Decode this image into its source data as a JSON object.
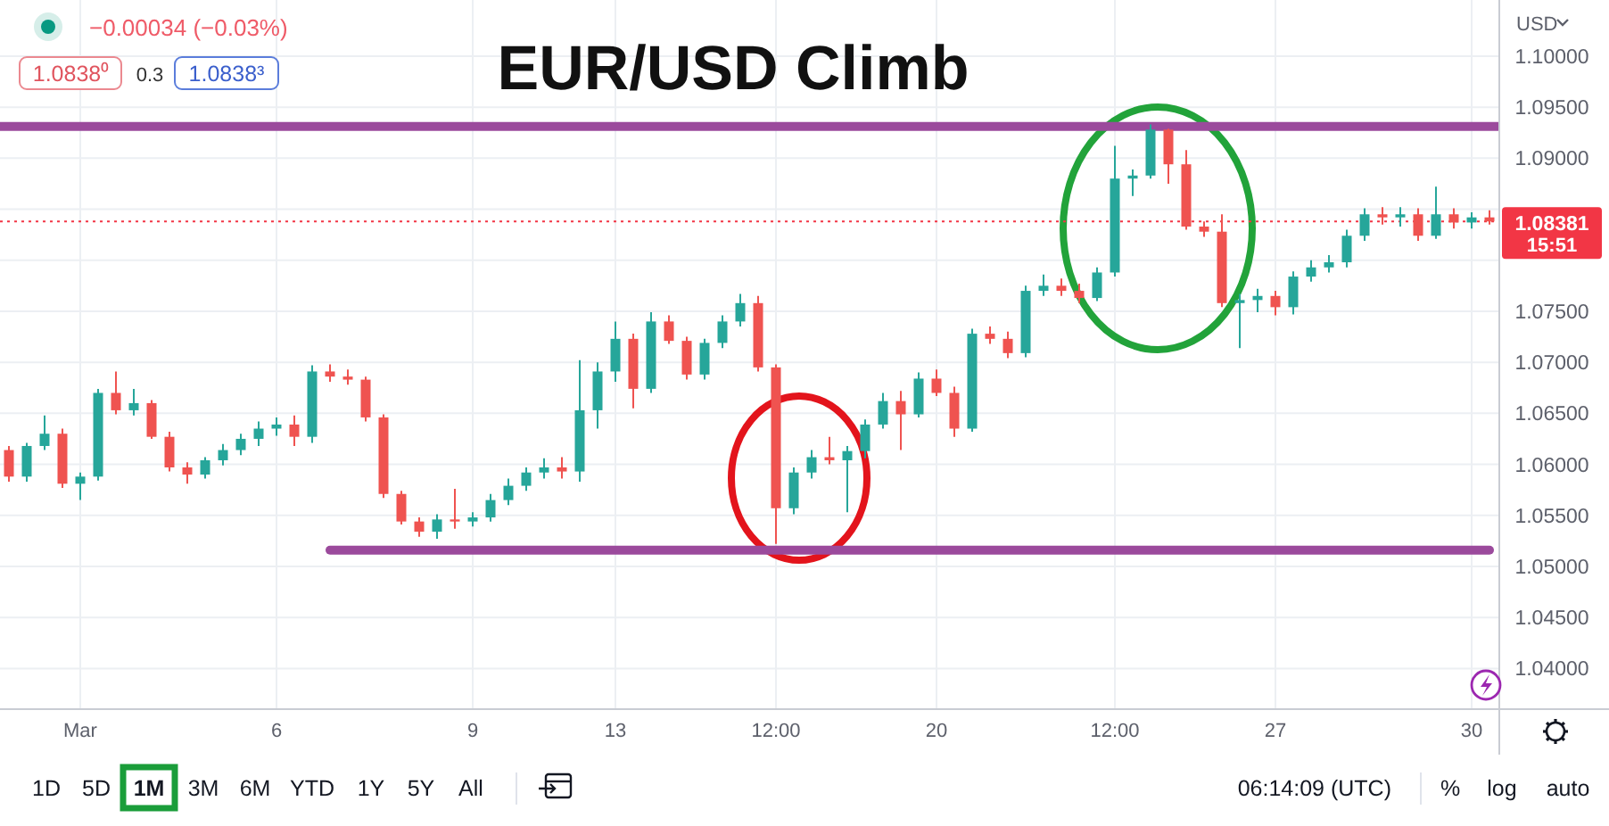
{
  "chart_data": {
    "type": "candlestick",
    "title": "EUR/USD Climb",
    "ylabel": "USD",
    "categories": [
      null,
      null,
      null,
      null,
      "Mar",
      null,
      null,
      null,
      null,
      null,
      null,
      null,
      null,
      null,
      null,
      "6",
      null,
      null,
      null,
      null,
      null,
      null,
      null,
      null,
      null,
      null,
      "9",
      null,
      null,
      null,
      null,
      null,
      null,
      null,
      "13",
      null,
      null,
      null,
      null,
      null,
      null,
      null,
      null,
      "12:00",
      null,
      null,
      null,
      null,
      null,
      null,
      null,
      null,
      "20",
      null,
      null,
      null,
      null,
      null,
      null,
      null,
      null,
      null,
      "12:00",
      null,
      null,
      null,
      null,
      null,
      null,
      null,
      null,
      "27",
      null,
      null,
      null,
      null,
      null,
      null,
      null,
      null,
      null,
      null,
      "30",
      null
    ],
    "ohlc": [
      [
        1.0614,
        1.0618,
        1.0583,
        1.0588
      ],
      [
        1.0588,
        1.0621,
        1.0583,
        1.0618
      ],
      [
        1.0618,
        1.0648,
        1.0614,
        1.063
      ],
      [
        1.063,
        1.0635,
        1.0577,
        1.0581
      ],
      [
        1.0581,
        1.0592,
        1.0565,
        1.0588
      ],
      [
        1.0588,
        1.0674,
        1.0584,
        1.067
      ],
      [
        1.067,
        1.0691,
        1.0649,
        1.0653
      ],
      [
        1.0653,
        1.0674,
        1.0648,
        1.066
      ],
      [
        1.066,
        1.0663,
        1.0625,
        1.0627
      ],
      [
        1.0627,
        1.0632,
        1.0593,
        1.0597
      ],
      [
        1.0597,
        1.0602,
        1.0581,
        1.059
      ],
      [
        1.059,
        1.0607,
        1.0586,
        1.0604
      ],
      [
        1.0604,
        1.062,
        1.0599,
        1.0614
      ],
      [
        1.0614,
        1.063,
        1.0609,
        1.0625
      ],
      [
        1.0625,
        1.0642,
        1.0618,
        1.0635
      ],
      [
        1.0635,
        1.0646,
        1.0628,
        1.0639
      ],
      [
        1.0639,
        1.0648,
        1.0618,
        1.0627
      ],
      [
        1.0627,
        1.0697,
        1.0621,
        1.0691
      ],
      [
        1.0691,
        1.0698,
        1.0681,
        1.0686
      ],
      [
        1.0686,
        1.0693,
        1.0678,
        1.0683
      ],
      [
        1.0683,
        1.0686,
        1.0642,
        1.0646
      ],
      [
        1.0646,
        1.0649,
        1.0567,
        1.0571
      ],
      [
        1.0571,
        1.0574,
        1.0541,
        1.0544
      ],
      [
        1.0544,
        1.0548,
        1.0529,
        1.0534
      ],
      [
        1.0534,
        1.0551,
        1.0527,
        1.0546
      ],
      [
        1.0546,
        1.0576,
        1.0537,
        1.0544
      ],
      [
        1.0544,
        1.0553,
        1.0539,
        1.0548
      ],
      [
        1.0548,
        1.0571,
        1.0544,
        1.0565
      ],
      [
        1.0565,
        1.0586,
        1.056,
        1.0579
      ],
      [
        1.0579,
        1.0597,
        1.0574,
        1.0592
      ],
      [
        1.0592,
        1.0606,
        1.0586,
        1.0597
      ],
      [
        1.0597,
        1.0607,
        1.0586,
        1.0593
      ],
      [
        1.0593,
        1.0702,
        1.0583,
        1.0653
      ],
      [
        1.0653,
        1.07,
        1.0635,
        1.0691
      ],
      [
        1.0691,
        1.074,
        1.0681,
        1.0723
      ],
      [
        1.0723,
        1.0728,
        1.0655,
        1.0674
      ],
      [
        1.0674,
        1.0749,
        1.067,
        1.074
      ],
      [
        1.074,
        1.0746,
        1.0718,
        1.0721
      ],
      [
        1.0721,
        1.0725,
        1.0683,
        1.0688
      ],
      [
        1.0688,
        1.0723,
        1.0683,
        1.0719
      ],
      [
        1.0719,
        1.0746,
        1.0714,
        1.074
      ],
      [
        1.074,
        1.0767,
        1.0735,
        1.0758
      ],
      [
        1.0758,
        1.0765,
        1.0691,
        1.0695
      ],
      [
        1.0695,
        1.0698,
        1.0522,
        1.0557
      ],
      [
        1.0557,
        1.0597,
        1.0551,
        1.0592
      ],
      [
        1.0592,
        1.0614,
        1.0586,
        1.0607
      ],
      [
        1.0607,
        1.0627,
        1.06,
        1.0604
      ],
      [
        1.0604,
        1.0618,
        1.0553,
        1.0613
      ],
      [
        1.0613,
        1.0644,
        1.0606,
        1.0639
      ],
      [
        1.0639,
        1.067,
        1.0635,
        1.0662
      ],
      [
        1.0662,
        1.0672,
        1.0614,
        1.0649
      ],
      [
        1.0649,
        1.069,
        1.0646,
        1.0684
      ],
      [
        1.0684,
        1.0693,
        1.0667,
        1.067
      ],
      [
        1.067,
        1.0676,
        1.0627,
        1.0635
      ],
      [
        1.0635,
        1.0733,
        1.0632,
        1.0728
      ],
      [
        1.0728,
        1.0735,
        1.0718,
        1.0723
      ],
      [
        1.0723,
        1.073,
        1.0704,
        1.0709
      ],
      [
        1.0709,
        1.0775,
        1.0705,
        1.077
      ],
      [
        1.077,
        1.0786,
        1.0765,
        1.0775
      ],
      [
        1.0775,
        1.0782,
        1.0765,
        1.077
      ],
      [
        1.077,
        1.0777,
        1.0758,
        1.0763
      ],
      [
        1.0763,
        1.0793,
        1.076,
        1.0788
      ],
      [
        1.0788,
        1.0912,
        1.0784,
        1.088
      ],
      [
        1.088,
        1.0889,
        1.0863,
        1.0883
      ],
      [
        1.0883,
        1.0933,
        1.088,
        1.0928
      ],
      [
        1.0928,
        1.0929,
        1.0875,
        1.0894
      ],
      [
        1.0894,
        1.0908,
        1.083,
        1.0833
      ],
      [
        1.0833,
        1.0838,
        1.0823,
        1.0828
      ],
      [
        1.0828,
        1.0845,
        1.0754,
        1.0758
      ],
      [
        1.0758,
        1.0767,
        1.0714,
        1.0761
      ],
      [
        1.0761,
        1.0772,
        1.0749,
        1.0765
      ],
      [
        1.0765,
        1.077,
        1.0746,
        1.0754
      ],
      [
        1.0754,
        1.0789,
        1.0747,
        1.0784
      ],
      [
        1.0784,
        1.08,
        1.0779,
        1.0793
      ],
      [
        1.0793,
        1.0805,
        1.0788,
        1.0798
      ],
      [
        1.0798,
        1.083,
        1.0793,
        1.0824
      ],
      [
        1.0824,
        1.0851,
        1.0819,
        1.0845
      ],
      [
        1.0845,
        1.0852,
        1.0835,
        1.0842
      ],
      [
        1.0842,
        1.0852,
        1.0833,
        1.0845
      ],
      [
        1.0845,
        1.0851,
        1.0819,
        1.0824
      ],
      [
        1.0824,
        1.0872,
        1.0821,
        1.0845
      ],
      [
        1.0845,
        1.0851,
        1.0831,
        1.0837
      ],
      [
        1.0837,
        1.0847,
        1.0831,
        1.0842
      ],
      [
        1.0842,
        1.0849,
        1.0835,
        1.0838
      ]
    ],
    "colors": [
      "#ef5350",
      "#26a69a",
      "#26a69a",
      "#ef5350",
      "#26a69a",
      "#26a69a",
      "#ef5350",
      "#26a69a",
      "#ef5350",
      "#ef5350",
      "#ef5350",
      "#26a69a",
      "#26a69a",
      "#26a69a",
      "#26a69a",
      "#26a69a",
      "#ef5350",
      "#26a69a",
      "#ef5350",
      "#ef5350",
      "#ef5350",
      "#ef5350",
      "#ef5350",
      "#ef5350",
      "#26a69a",
      "#ef5350",
      "#26a69a",
      "#26a69a",
      "#26a69a",
      "#26a69a",
      "#26a69a",
      "#ef5350",
      "#26a69a",
      "#26a69a",
      "#26a69a",
      "#ef5350",
      "#26a69a",
      "#ef5350",
      "#ef5350",
      "#26a69a",
      "#26a69a",
      "#26a69a",
      "#ef5350",
      "#ef5350",
      "#26a69a",
      "#26a69a",
      "#ef5350",
      "#26a69a",
      "#26a69a",
      "#26a69a",
      "#ef5350",
      "#26a69a",
      "#ef5350",
      "#ef5350",
      "#26a69a",
      "#ef5350",
      "#ef5350",
      "#26a69a",
      "#26a69a",
      "#ef5350",
      "#ef5350",
      "#26a69a",
      "#26a69a",
      "#26a69a",
      "#26a69a",
      "#ef5350",
      "#ef5350",
      "#ef5350",
      "#ef5350",
      "#26a69a",
      "#26a69a",
      "#ef5350",
      "#26a69a",
      "#26a69a",
      "#26a69a",
      "#26a69a",
      "#26a69a",
      "#ef5350",
      "#26a69a",
      "#ef5350",
      "#26a69a",
      "#ef5350",
      "#26a69a",
      "#ef5350"
    ],
    "series": [
      {
        "type": "line",
        "color": "#9b4a9c",
        "values": [
          null,
          null,
          null,
          null,
          null,
          null,
          null,
          null,
          null,
          null,
          null,
          null,
          null,
          null,
          null,
          null,
          null,
          null,
          1.0516,
          1.0516,
          1.0516,
          1.0516,
          1.0516,
          1.0516,
          1.0516,
          1.0516,
          1.0516,
          1.0516,
          1.0516,
          1.0516,
          1.0516,
          1.0516,
          1.0516,
          1.0516,
          1.0516,
          1.0516,
          1.0516,
          1.0516,
          1.0516,
          1.0516,
          1.0516,
          1.0516,
          1.0516,
          1.0516,
          1.0516,
          1.0516,
          1.0516,
          1.0516,
          1.0516,
          1.0516,
          1.0516,
          1.0516,
          1.0516,
          1.0516,
          1.0516,
          1.0516,
          1.0516,
          1.0516,
          1.0516,
          1.0516,
          1.0516,
          1.0516,
          1.0516,
          1.0516,
          1.0516,
          1.0516,
          1.0516,
          1.0516,
          1.0516,
          1.0516,
          1.0516,
          1.0516,
          1.0516,
          1.0516,
          1.0516,
          1.0516,
          1.0516,
          1.0516,
          1.0516,
          1.0516,
          1.0516,
          1.0516,
          1.0516,
          1.0516
        ]
      }
    ],
    "ylim": [
      1.0361,
      1.1055
    ],
    "yticks": [
      {
        "value": 1.04,
        "label": "1.04000"
      },
      {
        "value": 1.045,
        "label": "1.04500"
      },
      {
        "value": 1.05,
        "label": "1.05000"
      },
      {
        "value": 1.055,
        "label": "1.05500"
      },
      {
        "value": 1.06,
        "label": "1.06000"
      },
      {
        "value": 1.065,
        "label": "1.06500"
      },
      {
        "value": 1.07,
        "label": "1.07000"
      },
      {
        "value": 1.075,
        "label": "1.07500"
      },
      {
        "value": 1.08,
        "label": null
      },
      {
        "value": 1.085,
        "label": null
      },
      {
        "value": 1.09,
        "label": "1.09000"
      },
      {
        "value": 1.095,
        "label": "1.09500"
      },
      {
        "value": 1.1,
        "label": "1.10000"
      }
    ],
    "grid": true,
    "ref_lines": [
      {
        "axis": "y",
        "value": 1.0931,
        "color": "#9b4a9c",
        "line_style": "solid"
      },
      {
        "axis": "y",
        "value": 1.08381,
        "label": "1.08381",
        "color": "#f23645",
        "line_style": "dotted"
      }
    ],
    "annotations": [
      "−0.00034 (−0.03%)",
      "1.0838⁰",
      "0.3",
      "1.0838³",
      "15:51",
      "1D",
      "5D",
      "1M",
      "3M",
      "6M",
      "YTD",
      "1Y",
      "5Y",
      "All",
      "06:14:09 (UTC)",
      "%",
      "log",
      "auto"
    ]
  }
}
